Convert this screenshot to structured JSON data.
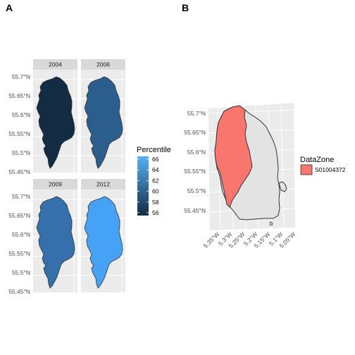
{
  "panels": {
    "a_label": "A",
    "b_label": "B"
  },
  "chart_data": [
    {
      "type": "map",
      "panel": "A",
      "facets": [
        "2004",
        "2006",
        "2009",
        "2012"
      ],
      "values": [
        56,
        62,
        63,
        66
      ],
      "colors": [
        "#132B43",
        "#2C5E8D",
        "#3570AD",
        "#46A2F4"
      ],
      "y_ticks": [
        "55.7°N",
        "55.65°N",
        "55.6°N",
        "55.55°N",
        "55.5°N",
        "55.45°N"
      ],
      "legend": {
        "title": "Percentile",
        "labels": [
          "66",
          "64",
          "62",
          "60",
          "58",
          "56"
        ],
        "range": [
          56,
          66
        ],
        "low_color": "#132B43",
        "high_color": "#56B1F7"
      }
    },
    {
      "type": "map",
      "panel": "B",
      "y_ticks": [
        "55.7°N",
        "55.65°N",
        "55.6°N",
        "55.55°N",
        "55.5°N",
        "55.45°N"
      ],
      "x_ticks": [
        "5.35°W",
        "5.3°W",
        "5.25°W",
        "5.2°W",
        "5.15°W",
        "5.1°W",
        "5.05°W"
      ],
      "legend": {
        "title": "DataZone",
        "items": [
          {
            "label": "S01004372",
            "color": "#F8766D"
          }
        ]
      },
      "background_region_color": "#E3E3E3"
    }
  ]
}
